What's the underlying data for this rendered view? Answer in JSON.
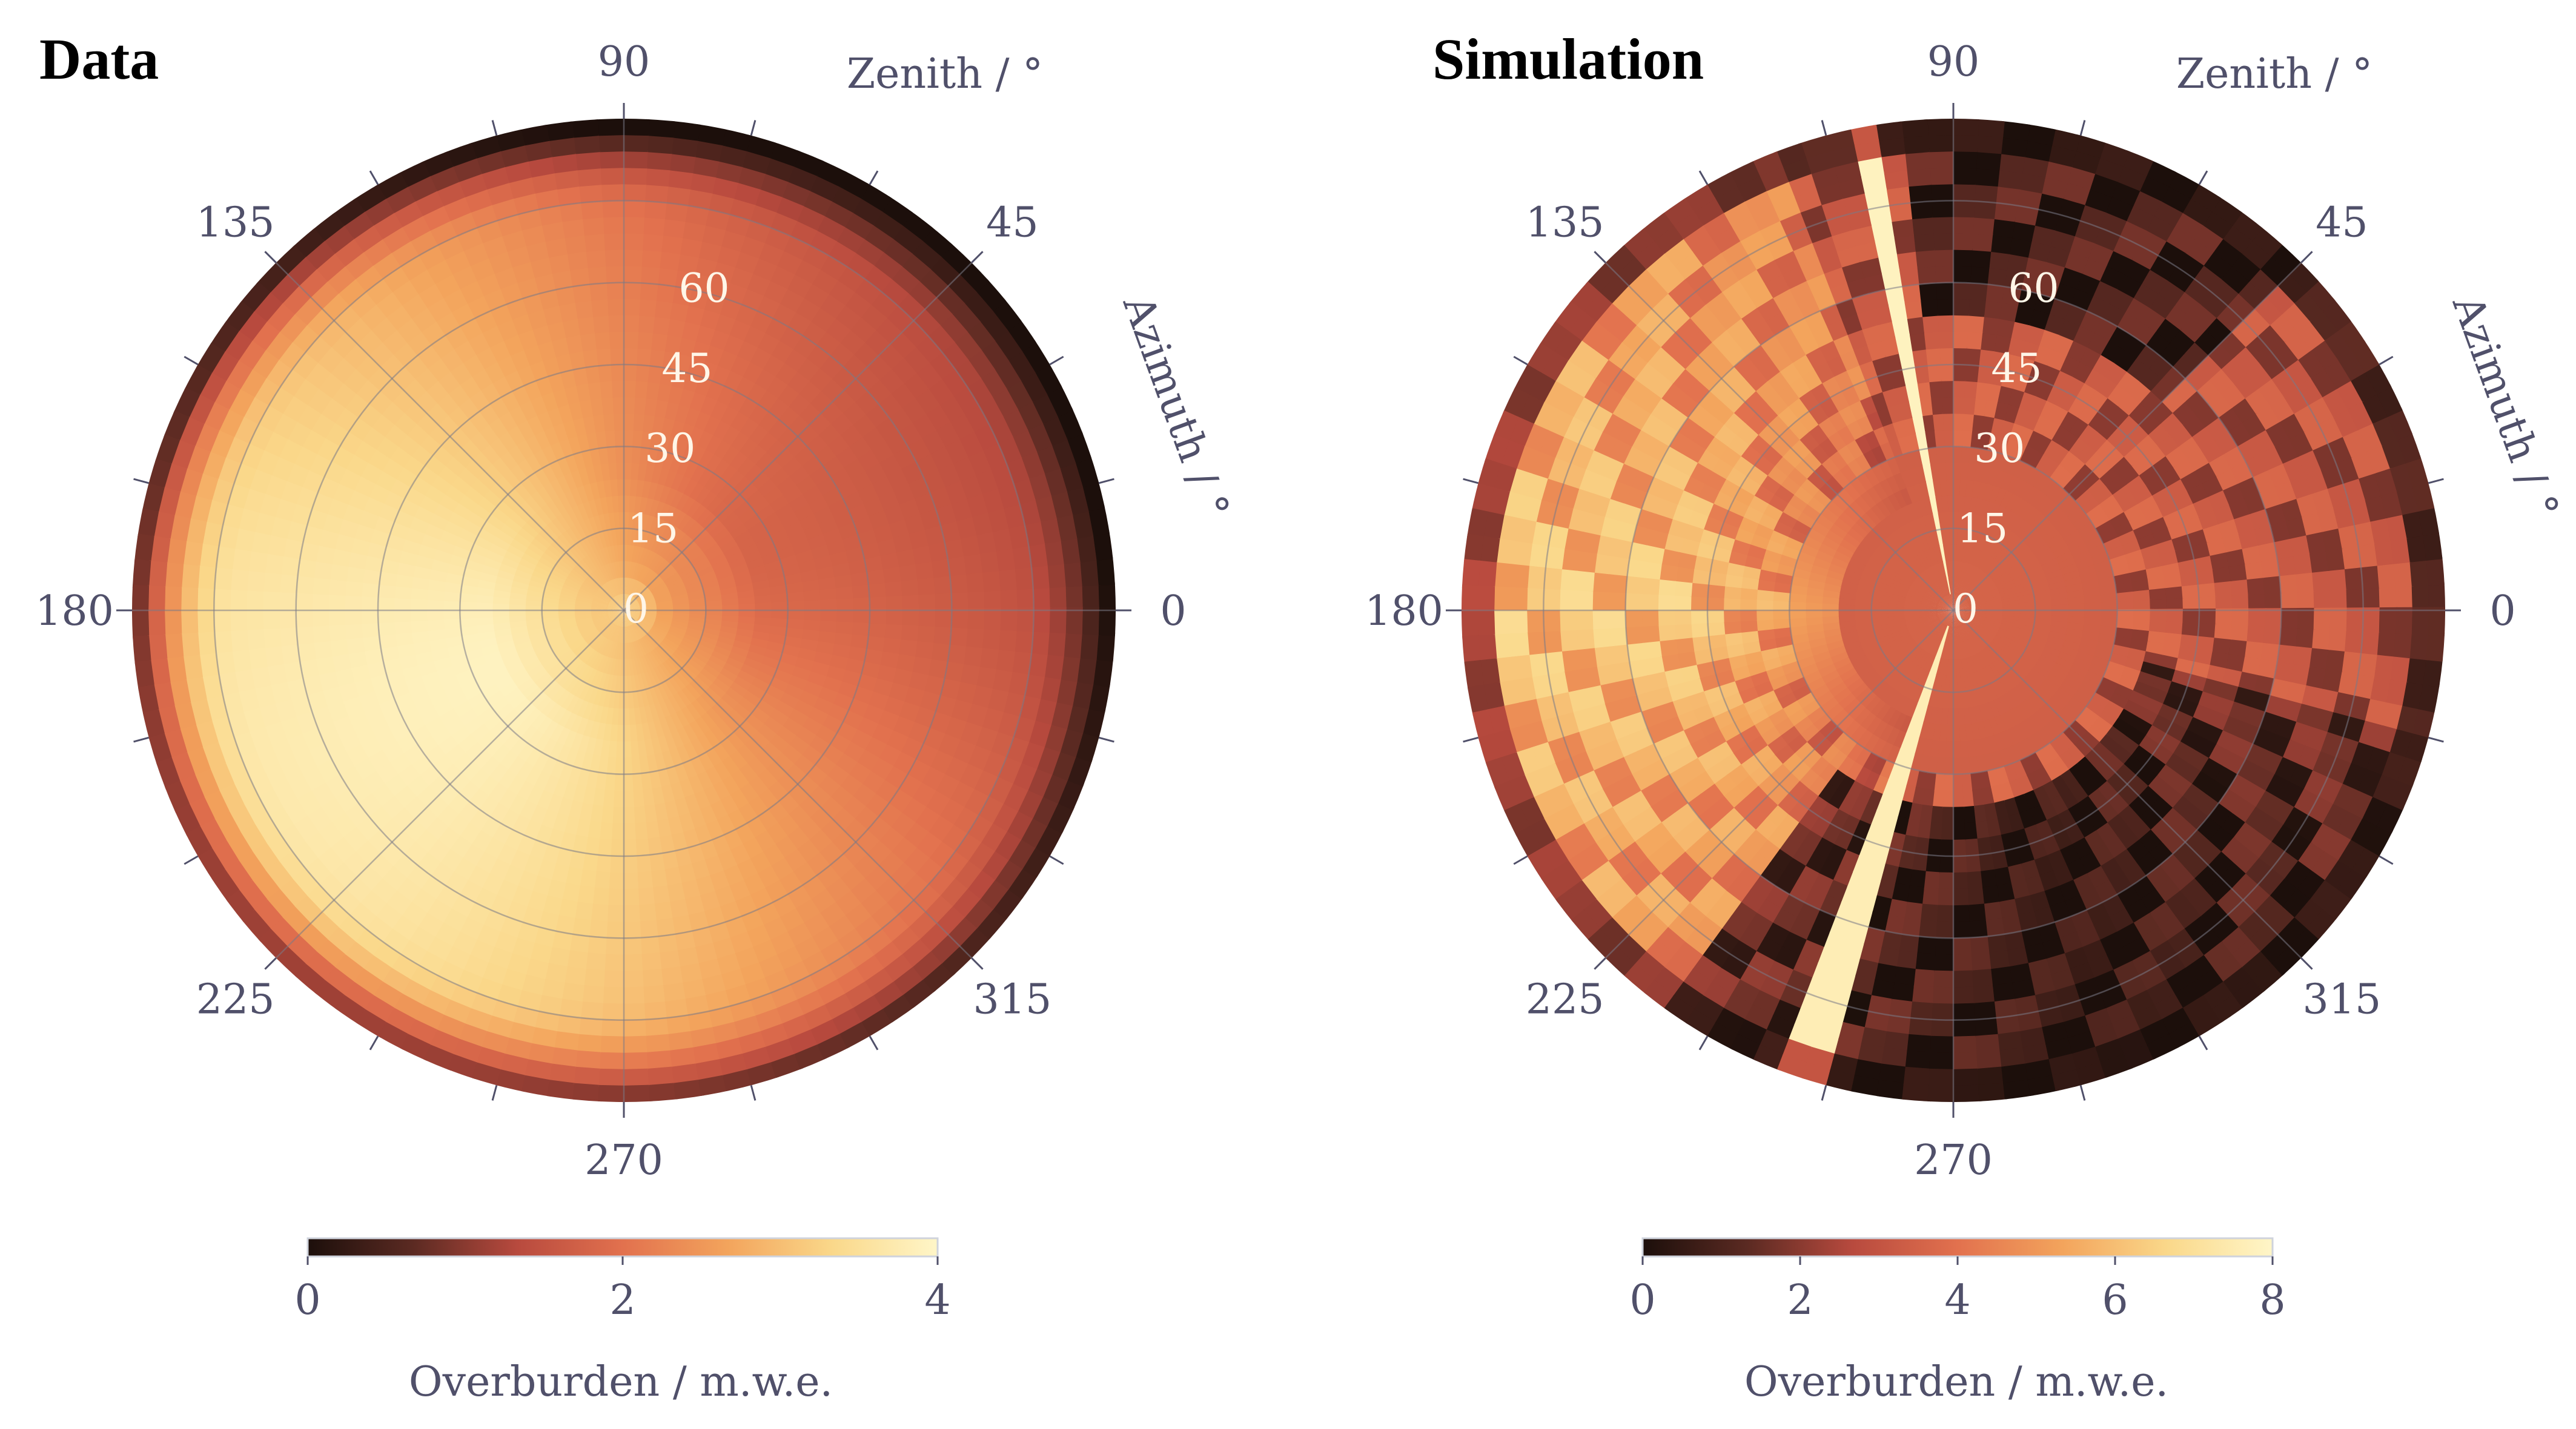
{
  "chart_data": [
    {
      "type": "heatmap",
      "subtype": "polar",
      "title": "Data",
      "radial_axis": {
        "label": "Zenith / °",
        "range": [
          0,
          90
        ],
        "ticks": [
          "0",
          "15",
          "30",
          "45",
          "60"
        ],
        "tick_values": [
          0,
          15,
          30,
          45,
          60
        ]
      },
      "angular_axis": {
        "label": "Azimuth / °",
        "ticks": [
          "0",
          "45",
          "90",
          "135",
          "180",
          "225",
          "270",
          "315"
        ],
        "tick_values": [
          0,
          45,
          90,
          135,
          180,
          225,
          270,
          315
        ],
        "direction": "counterclockwise"
      },
      "colorbar": {
        "label": "Overburden / m.w.e.",
        "range": [
          0,
          4
        ],
        "ticks": [
          "0",
          "2",
          "4"
        ],
        "tick_values": [
          0,
          2,
          4
        ],
        "colormap": [
          "#1c0f0b",
          "#5b2a22",
          "#b84a3e",
          "#e2714e",
          "#f3a45c",
          "#fad88a",
          "#fff6c8"
        ]
      },
      "description_of_field": "Overburden is highest (~4) around azimuth 180–240 at low zenith and decreases toward the horizon; lowest (~0) near zenith 90 at azimuth 180.",
      "samples": [
        {
          "az": 0,
          "zen": 0,
          "v": 3.1
        },
        {
          "az": 0,
          "zen": 30,
          "v": 2.2
        },
        {
          "az": 0,
          "zen": 60,
          "v": 2.0
        },
        {
          "az": 0,
          "zen": 85,
          "v": 1.6
        },
        {
          "az": 90,
          "zen": 30,
          "v": 3.0
        },
        {
          "az": 90,
          "zen": 60,
          "v": 2.4
        },
        {
          "az": 90,
          "zen": 85,
          "v": 1.2
        },
        {
          "az": 180,
          "zen": 30,
          "v": 3.9
        },
        {
          "az": 180,
          "zen": 60,
          "v": 3.4
        },
        {
          "az": 180,
          "zen": 88,
          "v": 0.2
        },
        {
          "az": 225,
          "zen": 30,
          "v": 3.9
        },
        {
          "az": 225,
          "zen": 60,
          "v": 3.0
        },
        {
          "az": 270,
          "zen": 30,
          "v": 3.2
        },
        {
          "az": 270,
          "zen": 60,
          "v": 2.7
        },
        {
          "az": 315,
          "zen": 30,
          "v": 2.4
        },
        {
          "az": 315,
          "zen": 60,
          "v": 1.8
        },
        {
          "az": 315,
          "zen": 88,
          "v": 0.4
        }
      ]
    },
    {
      "type": "heatmap",
      "subtype": "polar",
      "title": "Simulation",
      "radial_axis": {
        "label": "Zenith / °",
        "range": [
          0,
          90
        ],
        "ticks": [
          "0",
          "15",
          "30",
          "45",
          "60"
        ],
        "tick_values": [
          0,
          15,
          30,
          45,
          60
        ]
      },
      "angular_axis": {
        "label": "Azimuth / °",
        "ticks": [
          "0",
          "45",
          "90",
          "135",
          "180",
          "225",
          "270",
          "315"
        ],
        "tick_values": [
          0,
          45,
          90,
          135,
          180,
          225,
          270,
          315
        ],
        "direction": "counterclockwise"
      },
      "colorbar": {
        "label": "Overburden / m.w.e.",
        "range": [
          0,
          8
        ],
        "ticks": [
          "0",
          "2",
          "4",
          "6",
          "8"
        ],
        "tick_values": [
          0,
          2,
          4,
          6,
          8
        ],
        "colormap": [
          "#1c0f0b",
          "#5b2a22",
          "#b84a3e",
          "#e2714e",
          "#f3a45c",
          "#fad88a",
          "#fff6c8"
        ]
      },
      "description_of_field": "Blocky structure: bright ridges along azimuth ~100 and ~250, high values (~6–7) toward azimuth 180 at zenith 30–70, low values (~0–1) toward azimuth 270–300 at large zenith.",
      "samples": [
        {
          "az": 0,
          "zen": 0,
          "v": 3.8
        },
        {
          "az": 0,
          "zen": 30,
          "v": 3.6
        },
        {
          "az": 0,
          "zen": 60,
          "v": 3.2
        },
        {
          "az": 0,
          "zen": 85,
          "v": 1.5
        },
        {
          "az": 90,
          "zen": 60,
          "v": 1.5
        },
        {
          "az": 101,
          "zen": 60,
          "v": 7.8
        },
        {
          "az": 180,
          "zen": 30,
          "v": 6.2
        },
        {
          "az": 180,
          "zen": 60,
          "v": 6.8
        },
        {
          "az": 250,
          "zen": 45,
          "v": 7.9
        },
        {
          "az": 270,
          "zen": 60,
          "v": 0.6
        },
        {
          "az": 315,
          "zen": 60,
          "v": 1.0
        }
      ]
    }
  ]
}
